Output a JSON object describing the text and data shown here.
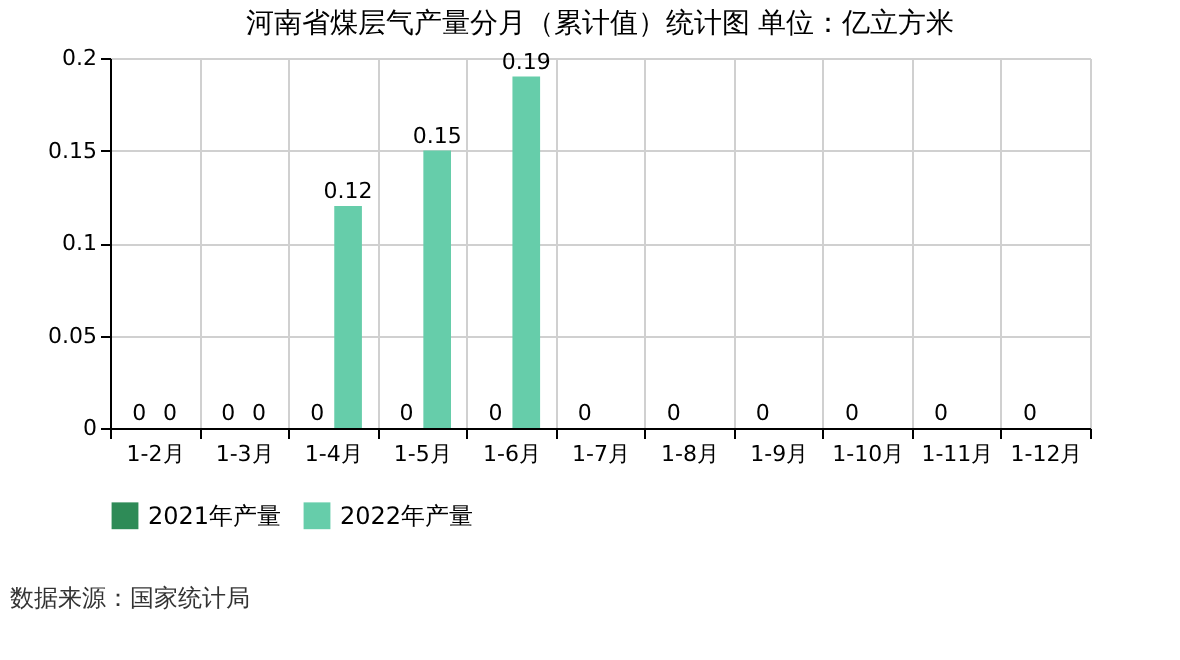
{
  "chart_data": {
    "type": "bar",
    "title": "河南省煤层气产量分月（累计值）统计图 单位：亿立方米",
    "categories": [
      "1-2月",
      "1-3月",
      "1-4月",
      "1-5月",
      "1-6月",
      "1-7月",
      "1-8月",
      "1-9月",
      "1-10月",
      "1-11月",
      "1-12月"
    ],
    "series": [
      {
        "name": "2021年产量",
        "color": "#2e8b57",
        "values": [
          0,
          0,
          0,
          0,
          0,
          0,
          0,
          0,
          0,
          0,
          0
        ]
      },
      {
        "name": "2022年产量",
        "color": "#66cdaa",
        "values": [
          0,
          0,
          0.12,
          0.15,
          0.19,
          null,
          null,
          null,
          null,
          null,
          null
        ]
      }
    ],
    "ylim": [
      0,
      0.2
    ],
    "yticks": [
      0,
      0.05,
      0.1,
      0.15,
      0.2
    ],
    "grid": true,
    "legend": "bottom",
    "data_labels": true,
    "annotations": [
      "数据来源：国家统计局"
    ]
  }
}
